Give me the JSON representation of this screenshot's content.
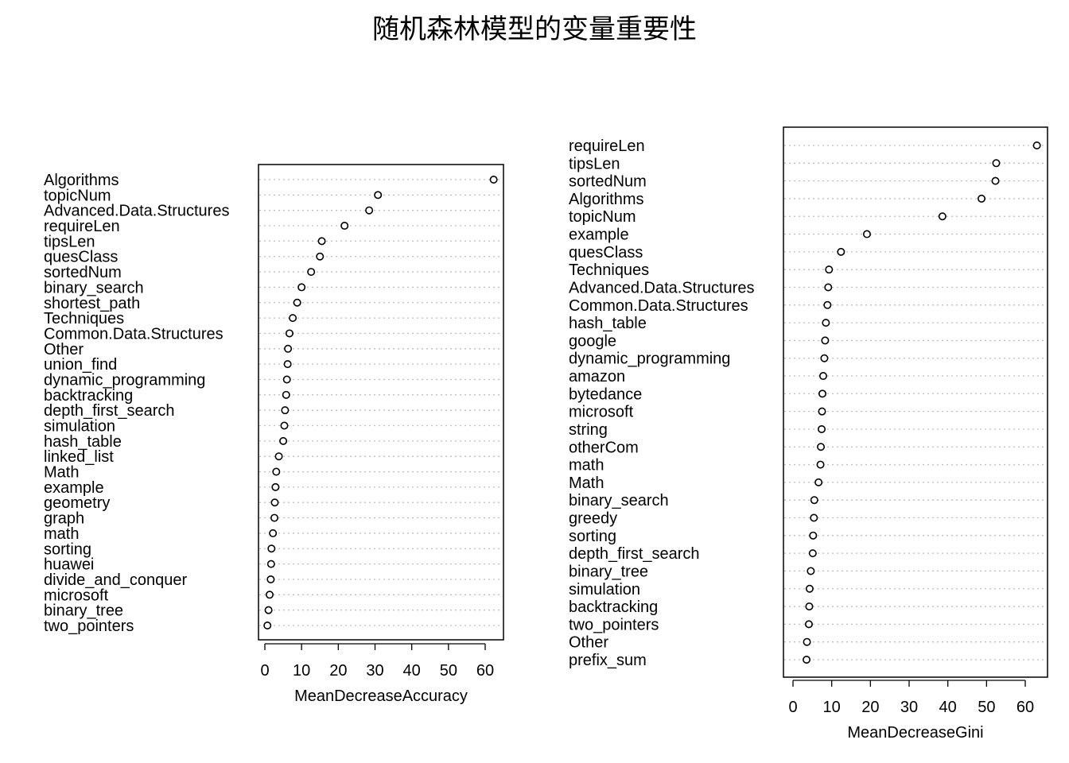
{
  "title": "随机森林模型的变量重要性",
  "chart_data": [
    {
      "type": "scatter",
      "xlabel": "MeanDecreaseAccuracy",
      "xlim": [
        0,
        65
      ],
      "xticks": [
        0,
        10,
        20,
        30,
        40,
        50,
        60
      ],
      "grid": true,
      "variables": [
        "Algorithms",
        "topicNum",
        "Advanced.Data.Structures",
        "requireLen",
        "tipsLen",
        "quesClass",
        "sortedNum",
        "binary_search",
        "shortest_path",
        "Techniques",
        "Common.Data.Structures",
        "Other",
        "union_find",
        "dynamic_programming",
        "backtracking",
        "depth_first_search",
        "simulation",
        "hash_table",
        "linked_list",
        "Math",
        "example",
        "geometry",
        "graph",
        "math",
        "sorting",
        "huawei",
        "divide_and_conquer",
        "microsoft",
        "binary_tree",
        "two_pointers"
      ],
      "values": [
        62.3,
        30.8,
        28.4,
        21.7,
        15.5,
        15.0,
        12.6,
        10.0,
        8.8,
        7.6,
        6.7,
        6.3,
        6.2,
        6.0,
        5.8,
        5.5,
        5.3,
        5.0,
        3.8,
        3.1,
        2.9,
        2.7,
        2.6,
        2.2,
        1.8,
        1.7,
        1.6,
        1.3,
        1.0,
        0.7
      ]
    },
    {
      "type": "scatter",
      "xlabel": "MeanDecreaseGini",
      "xlim": [
        -0.5,
        65
      ],
      "xticks": [
        0,
        10,
        20,
        30,
        40,
        50,
        60
      ],
      "grid": true,
      "variables": [
        "requireLen",
        "tipsLen",
        "sortedNum",
        "Algorithms",
        "topicNum",
        "example",
        "quesClass",
        "Techniques",
        "Advanced.Data.Structures",
        "Common.Data.Structures",
        "hash_table",
        "google",
        "dynamic_programming",
        "amazon",
        "bytedance",
        "microsoft",
        "string",
        "otherCom",
        "math",
        "Math",
        "binary_search",
        "greedy",
        "sorting",
        "depth_first_search",
        "binary_tree",
        "simulation",
        "backtracking",
        "two_pointers",
        "Other",
        "prefix_sum"
      ],
      "values": [
        63.0,
        52.5,
        52.3,
        48.7,
        38.6,
        19.1,
        12.4,
        9.3,
        9.1,
        8.9,
        8.5,
        8.3,
        8.1,
        7.8,
        7.6,
        7.5,
        7.4,
        7.2,
        7.1,
        6.6,
        5.5,
        5.4,
        5.2,
        5.1,
        4.6,
        4.3,
        4.2,
        4.1,
        3.6,
        3.5
      ]
    }
  ]
}
